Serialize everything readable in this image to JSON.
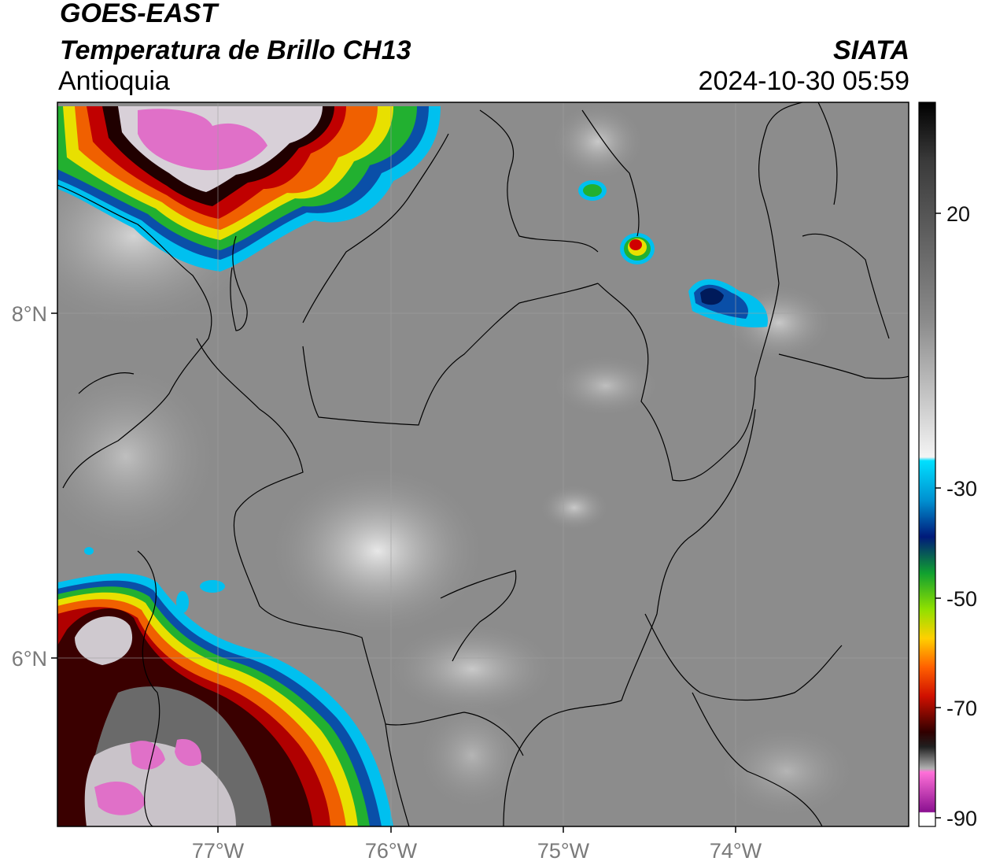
{
  "header": {
    "line1": "GOES-EAST",
    "line2": "Temperatura de Brillo CH13",
    "line3": "Antioquia",
    "org": "SIATA",
    "datetime": "2024-10-30 05:59"
  },
  "axes": {
    "lon_ticks": [
      "77°W",
      "76°W",
      "75°W",
      "74°W"
    ],
    "lat_ticks": [
      "8°N",
      "6°N"
    ]
  },
  "colorbar": {
    "labels": [
      "20",
      "-30",
      "-50",
      "-70",
      "-90"
    ]
  },
  "colors": {
    "background_gray": "#8c8c8c",
    "cold_magenta": "#e066c8",
    "red": "#b00000",
    "orange": "#f05000",
    "yellow": "#e8e000",
    "green": "#20b020",
    "blue": "#003c9c",
    "cyan": "#00c8f0"
  }
}
